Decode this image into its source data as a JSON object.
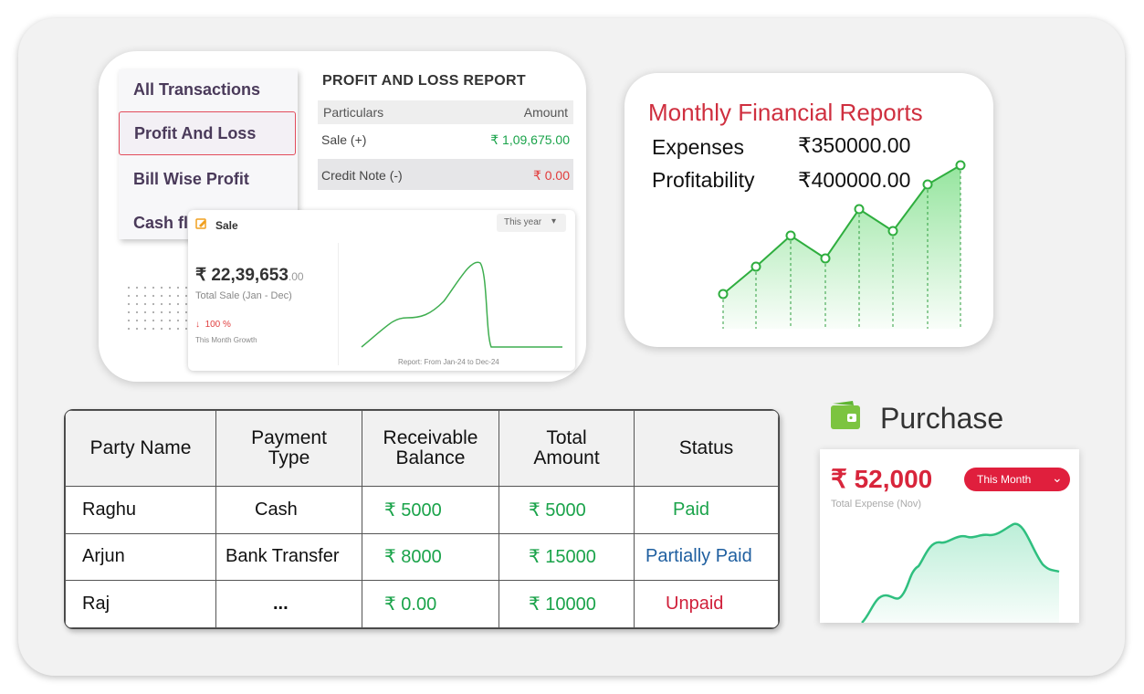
{
  "profit_loss": {
    "menu": [
      "All Transactions",
      "Profit And Loss",
      "Bill Wise Profit",
      "Cash fl"
    ],
    "title": "PROFIT AND LOSS REPORT",
    "col_particulars": "Particulars",
    "col_amount": "Amount",
    "rows": [
      {
        "label": "Sale (+)",
        "amount": "₹ 1,09,675.00",
        "color": "#1aa34a"
      },
      {
        "label": "Credit Note (-)",
        "amount": "₹ 0.00",
        "color": "#e23b3b"
      }
    ]
  },
  "sale_card": {
    "title": "Sale",
    "period": "This year",
    "amount": "₹ 22,39,653",
    "amount_decimals": ".00",
    "subtitle": "Total Sale (Jan - Dec)",
    "growth": "100 %",
    "growth_label": "This Month Growth",
    "report_range": "Report: From Jan-24 to Dec-24"
  },
  "monthly": {
    "title": "Monthly Financial Reports",
    "expenses_label": "Expenses",
    "expenses_value": "₹350000.00",
    "profit_label": "Profitability",
    "profit_value": "₹400000.00",
    "accent": "#cf2f3f"
  },
  "table": {
    "headers": [
      "Party Name",
      "Payment Type",
      "Receivable Balance",
      "Total Amount",
      "Status"
    ],
    "rows": [
      {
        "party": "Raghu",
        "payment": "Cash",
        "receivable": "₹ 5000",
        "total": "₹ 5000",
        "status": "Paid",
        "status_class": "stat-paid"
      },
      {
        "party": "Arjun",
        "payment": "Bank Transfer",
        "receivable": "₹ 8000",
        "total": "₹ 15000",
        "status": "Partially Paid",
        "status_class": "stat-partial"
      },
      {
        "party": "Raj",
        "payment": "...",
        "receivable": "₹ 0.00",
        "total": "₹ 10000",
        "status": "Unpaid",
        "status_class": "stat-unpaid"
      }
    ]
  },
  "purchase": {
    "title": "Purchase",
    "amount": "₹ 52,000",
    "period": "This Month",
    "subtitle": "Total Expense (Nov)"
  }
}
